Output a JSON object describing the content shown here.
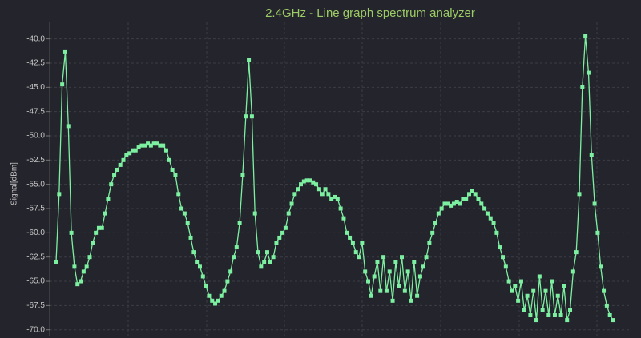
{
  "chart_data": {
    "type": "line",
    "title": "2.4GHz - Line graph spectrum analyzer",
    "y_label": "Signal[dBm]",
    "color": "#7cf0a0",
    "ylim": [
      -70.6,
      -38.3
    ],
    "yticks": [
      {
        "value": -40,
        "label": "-40.0"
      },
      {
        "value": -42.5,
        "label": "-42.5"
      },
      {
        "value": -45,
        "label": "-45.0"
      },
      {
        "value": -47.5,
        "label": "-47.5"
      },
      {
        "value": -50,
        "label": "-50.0"
      },
      {
        "value": -52.5,
        "label": "-52.5"
      },
      {
        "value": -55,
        "label": "-55.0"
      },
      {
        "value": -57.5,
        "label": "-57.5"
      },
      {
        "value": -60,
        "label": "-60.0"
      },
      {
        "value": -62.5,
        "label": "-62.5"
      },
      {
        "value": -65,
        "label": "-65.0"
      },
      {
        "value": -67.5,
        "label": "-67.5"
      },
      {
        "value": -70,
        "label": "-70.0"
      }
    ],
    "grid": true,
    "values": [
      -63,
      -56,
      -44.7,
      -41.3,
      -49,
      -60,
      -63.5,
      -65.3,
      -65,
      -64,
      -63.5,
      -62.5,
      -61,
      -60,
      -59.5,
      -59.5,
      -58,
      -56.5,
      -55,
      -54,
      -53.5,
      -53,
      -52.5,
      -52,
      -51.8,
      -51.5,
      -51.5,
      -51.2,
      -51,
      -51,
      -50.8,
      -51,
      -50.8,
      -50.8,
      -51,
      -51,
      -51.5,
      -52.5,
      -53.5,
      -54,
      -56,
      -57.5,
      -58,
      -59,
      -60.5,
      -62,
      -63,
      -63.5,
      -64.5,
      -65.5,
      -66.5,
      -67,
      -67.3,
      -67,
      -66.5,
      -66,
      -65,
      -64,
      -62.5,
      -61.5,
      -59,
      -54,
      -48,
      -42.2,
      -48,
      -58,
      -62,
      -63.5,
      -63,
      -62,
      -63,
      -62.5,
      -61,
      -60.5,
      -60,
      -59.5,
      -58,
      -57,
      -56,
      -55.5,
      -55,
      -54.7,
      -54.6,
      -54.6,
      -54.8,
      -55,
      -55.5,
      -56,
      -55.5,
      -56,
      -56.5,
      -56.3,
      -56.5,
      -57.5,
      -58.5,
      -60,
      -60.5,
      -61,
      -62,
      -62.5,
      -61,
      -64,
      -65,
      -66.5,
      -64.5,
      -63,
      -66,
      -62.5,
      -66,
      -64,
      -67,
      -63,
      -65.5,
      -62.5,
      -66,
      -64,
      -67,
      -63,
      -66.5,
      -64.5,
      -63.5,
      -62.5,
      -61,
      -60,
      -59,
      -58,
      -57.5,
      -57,
      -57,
      -57.2,
      -57,
      -56.8,
      -57,
      -56.5,
      -56.5,
      -56,
      -55.7,
      -56,
      -56.5,
      -57,
      -57.5,
      -58,
      -58.5,
      -59,
      -60,
      -61.5,
      -62.5,
      -63.5,
      -65,
      -66,
      -65.5,
      -67,
      -65,
      -68,
      -66.5,
      -68.5,
      -66,
      -69,
      -64.5,
      -68,
      -66,
      -68.5,
      -65,
      -68.5,
      -66.5,
      -68.5,
      -65.5,
      -69,
      -68,
      -64,
      -62,
      -56,
      -45,
      -39.7,
      -43.5,
      -52,
      -57,
      -60,
      -63.5,
      -66,
      -67.5,
      -68.5,
      -69
    ]
  }
}
